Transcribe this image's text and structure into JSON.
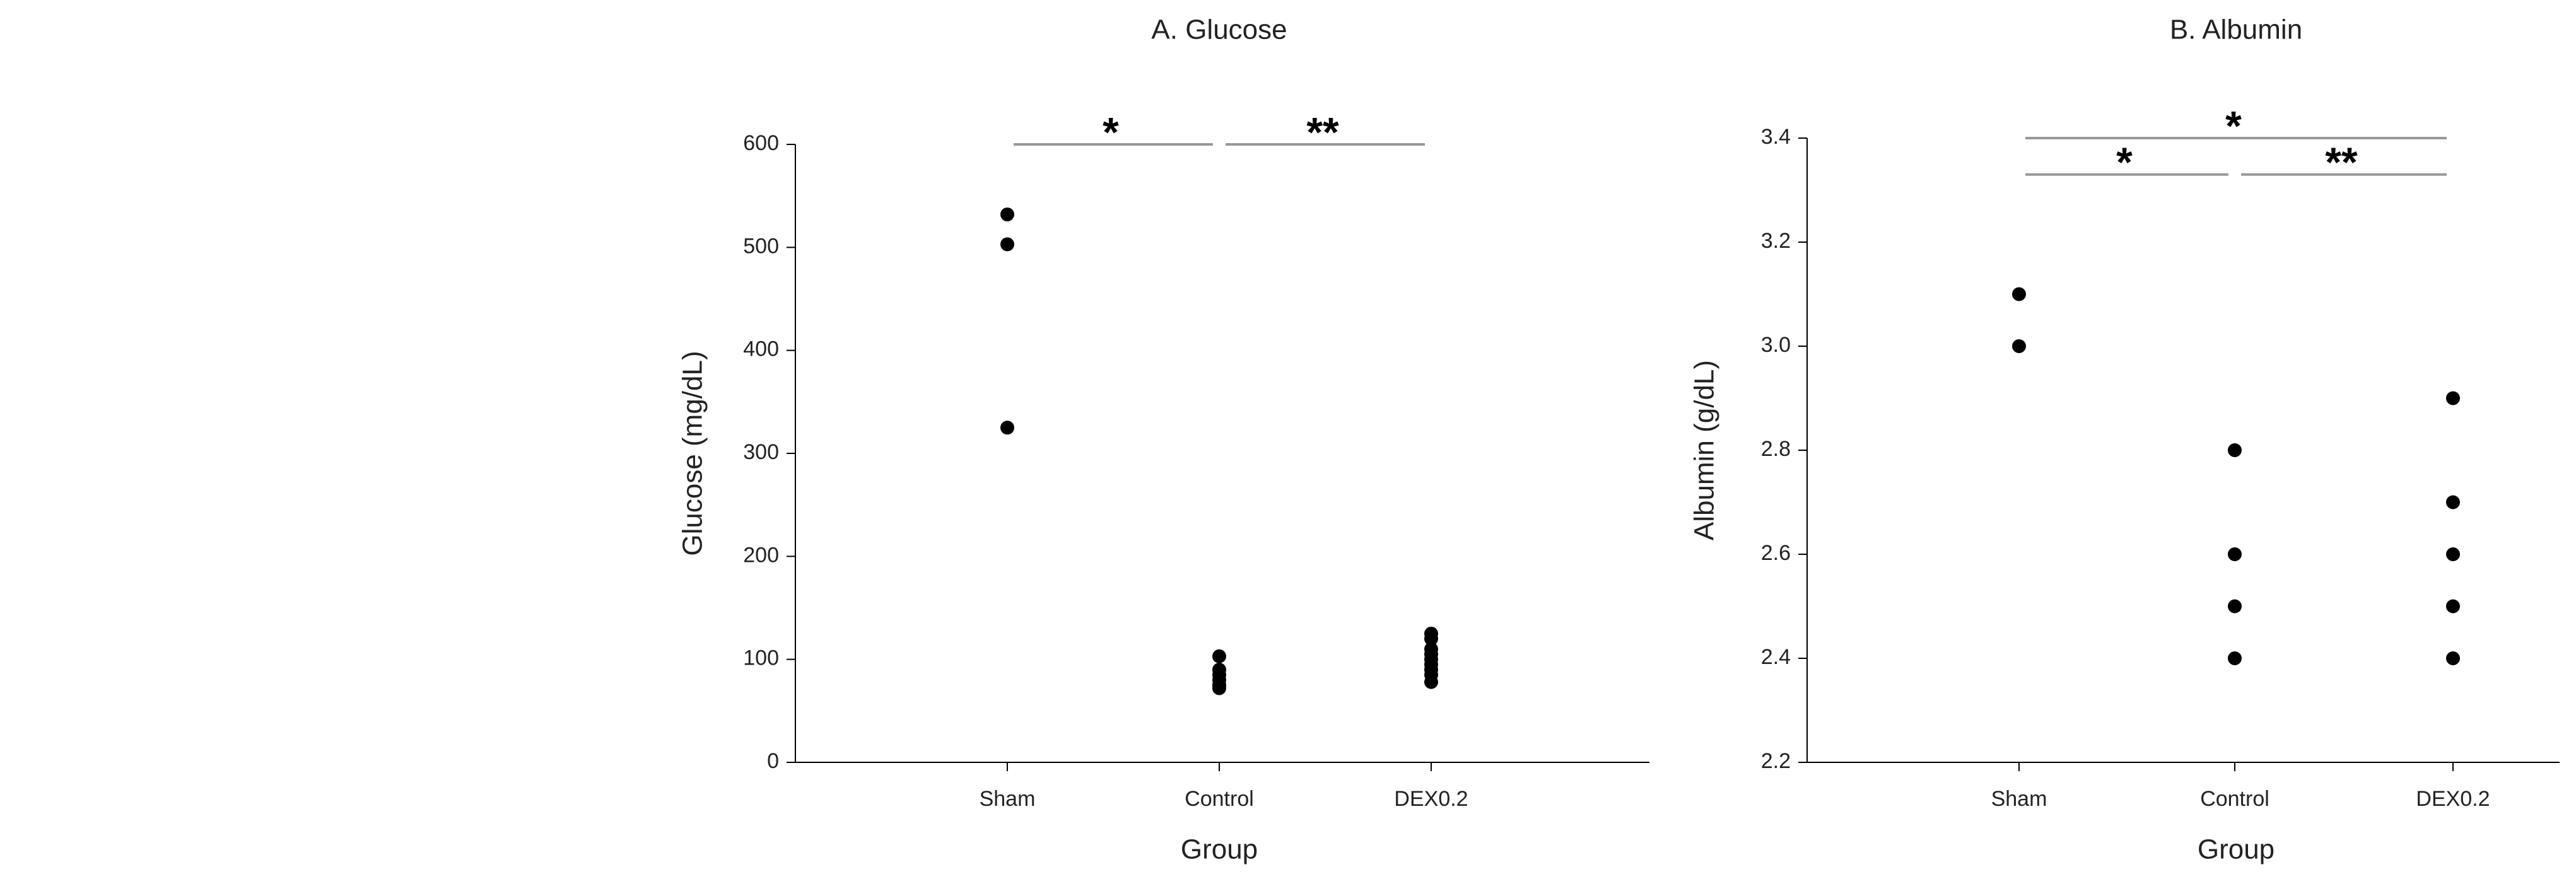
{
  "chart_data": [
    {
      "type": "strip",
      "title": "A. Glucose",
      "x_label": "Group",
      "y_label": "Glucose (mg/dL)",
      "categories": [
        "Sham",
        "Control",
        "DEX0.2"
      ],
      "values": [
        [
          532,
          503,
          325
        ],
        [
          103,
          90,
          85,
          80,
          75,
          72
        ],
        [
          125,
          120,
          110,
          105,
          100,
          95,
          90,
          85,
          78
        ]
      ],
      "color": "#000000",
      "ylim": [
        0,
        600
      ],
      "yticks": [
        0,
        100,
        200,
        300,
        400,
        500,
        600
      ],
      "grid": false,
      "annotations": [
        {
          "label": "*",
          "between": [
            0,
            1
          ],
          "y": 600
        },
        {
          "label": "**",
          "between": [
            1,
            2
          ],
          "y": 600
        }
      ]
    },
    {
      "type": "strip",
      "title": "B. Albumin",
      "x_label": "Group",
      "y_label": "Albumin (g/dL)",
      "categories": [
        "Sham",
        "Control",
        "DEX0.2"
      ],
      "values": [
        [
          3.1,
          3.0
        ],
        [
          2.8,
          2.6,
          2.5,
          2.4
        ],
        [
          2.9,
          2.7,
          2.6,
          2.5,
          2.4
        ]
      ],
      "color": "#000000",
      "ylim": [
        2.2,
        3.4
      ],
      "yticks": [
        2.2,
        2.4,
        2.6,
        2.8,
        {
          "value": 3,
          "label": "3.0"
        },
        3.2,
        3.4
      ],
      "grid": false,
      "annotations": [
        {
          "label": "*",
          "between": [
            0,
            2
          ],
          "y": 3.4
        },
        {
          "label": "*",
          "between": [
            0,
            1
          ],
          "y": 3.33
        },
        {
          "label": "**",
          "between": [
            1,
            2
          ],
          "y": 3.33
        }
      ]
    }
  ]
}
